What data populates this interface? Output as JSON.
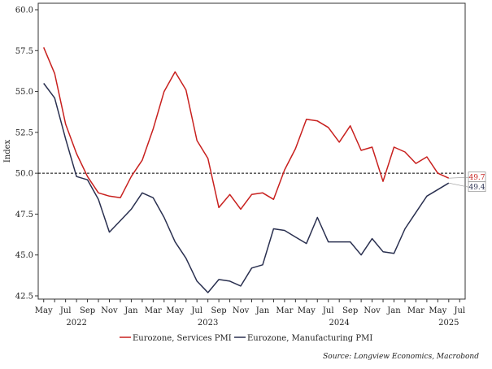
{
  "chart_data": {
    "type": "line",
    "ylabel": "Index",
    "ylim": [
      42.5,
      60.0
    ],
    "yticks": [
      "60.0",
      "57.5",
      "55.0",
      "52.5",
      "50.0",
      "47.5",
      "45.0",
      "42.5"
    ],
    "ytick_values": [
      60.0,
      57.5,
      55.0,
      52.5,
      50.0,
      47.5,
      45.0,
      42.5
    ],
    "reference_line": 50.0,
    "x_month_labels": [
      "May",
      "Jul",
      "Sep",
      "Nov",
      "Jan",
      "Mar",
      "May",
      "Jul",
      "Sep",
      "Nov",
      "Jan",
      "Mar",
      "May",
      "Jul",
      "Sep",
      "Nov",
      "Jan",
      "Mar",
      "May",
      "Jul"
    ],
    "x_month_label_index": [
      0,
      2,
      4,
      6,
      8,
      10,
      12,
      14,
      16,
      18,
      20,
      22,
      24,
      26,
      28,
      30,
      32,
      34,
      36,
      38
    ],
    "x_year_labels": [
      "2022",
      "2023",
      "2024",
      "2025"
    ],
    "x_year_label_index": [
      3,
      15,
      27,
      37
    ],
    "x_range": [
      -0.5,
      38.5
    ],
    "series": [
      {
        "name": "Eurozone, Services PMI",
        "color": "#c8201e",
        "values": [
          57.7,
          56.1,
          53.0,
          51.2,
          49.8,
          48.8,
          48.6,
          48.5,
          49.8,
          50.8,
          52.7,
          55.0,
          56.2,
          55.1,
          52.0,
          50.9,
          47.9,
          48.7,
          47.8,
          48.7,
          48.8,
          48.4,
          50.2,
          51.5,
          53.3,
          53.2,
          52.8,
          51.9,
          52.9,
          51.4,
          51.6,
          49.5,
          51.6,
          51.3,
          50.6,
          51.0,
          50.0,
          49.7
        ],
        "end_label": "49.7"
      },
      {
        "name": "Eurozone, Manufacturing PMI",
        "color": "#2a3050",
        "values": [
          55.5,
          54.6,
          52.1,
          49.8,
          49.6,
          48.4,
          46.4,
          47.1,
          47.8,
          48.8,
          48.5,
          47.3,
          45.8,
          44.8,
          43.4,
          42.7,
          43.5,
          43.4,
          43.1,
          44.2,
          44.4,
          46.6,
          46.5,
          46.1,
          45.7,
          47.3,
          45.8,
          45.8,
          45.8,
          45.0,
          46.0,
          45.2,
          45.1,
          46.6,
          47.6,
          48.6,
          49.0,
          49.4
        ],
        "end_label": "49.4"
      }
    ],
    "source": "Source: Longview Economics, Macrobond"
  }
}
